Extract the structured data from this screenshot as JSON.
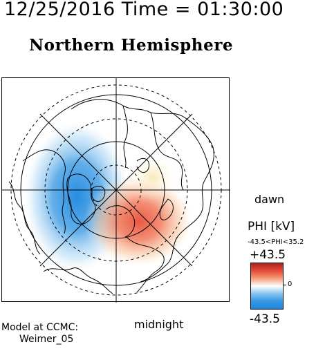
{
  "header": {
    "timestamp": "12/25/2016 Time = 01:30:00",
    "hemisphere_title": "Northern Hemisphere"
  },
  "map": {
    "labels": {
      "dawn": "dawn",
      "midnight": "midnight"
    },
    "features": [
      "coastlines",
      "latitude-circles",
      "longitude-meridians",
      "potential-pattern"
    ],
    "cells": {
      "negative_color": "#1b86e0",
      "positive_color": "#e8503a"
    }
  },
  "colorbar": {
    "variable_label": "PHI [kV]",
    "range_label": "-43.5<PHI<35.2",
    "max_label": "+43.5",
    "min_label": "-43.5",
    "zero_label": "0",
    "colors": {
      "max": "#b0201e",
      "mid": "#ffffff",
      "min": "#1b86e0"
    }
  },
  "footer": {
    "model_label": "Model at CCMC:",
    "model_name": "Weimer_05"
  }
}
